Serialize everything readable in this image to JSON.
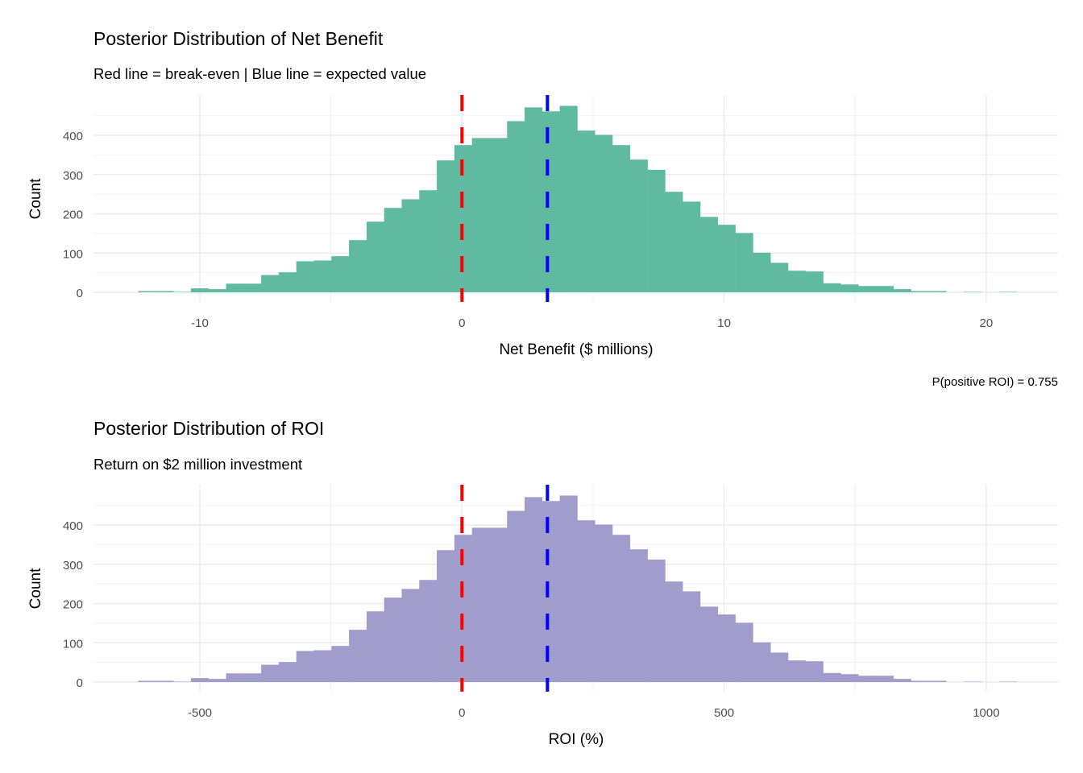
{
  "chart_data": [
    {
      "type": "bar",
      "subtype": "histogram",
      "title": "Posterior Distribution of Net Benefit",
      "subtitle": "Red line = break-even | Blue line = expected value",
      "xlabel": "Net Benefit ($ millions)",
      "ylabel": "Count",
      "caption": "P(positive ROI) = 0.755",
      "xlim": [
        -13.9,
        23.0
      ],
      "ylim": [
        0,
        500
      ],
      "xticks": [
        -10,
        0,
        10,
        20
      ],
      "xtick_labels": [
        "-10",
        "0",
        "10",
        "20"
      ],
      "yticks": [
        0,
        100,
        200,
        300,
        400
      ],
      "ytick_labels": [
        "0",
        "100",
        "200",
        "300",
        "400"
      ],
      "bin_start": -12.35,
      "bin_width": 0.67,
      "counts": [
        3,
        3,
        1,
        10,
        8,
        22,
        22,
        44,
        51,
        79,
        81,
        92,
        133,
        180,
        215,
        237,
        260,
        336,
        375,
        393,
        393,
        436,
        471,
        461,
        475,
        412,
        401,
        375,
        338,
        312,
        256,
        231,
        192,
        172,
        151,
        101,
        75,
        55,
        53,
        23,
        20,
        16,
        16,
        8,
        3,
        3,
        0,
        1,
        0,
        1
      ],
      "fill_color": "#5FBAA0",
      "vlines": [
        {
          "name": "break-even",
          "x": 0,
          "color": "#FF0000"
        },
        {
          "name": "expected value",
          "x": 3.26,
          "color": "#0000FF"
        }
      ],
      "grid": true
    },
    {
      "type": "bar",
      "subtype": "histogram",
      "title": "Posterior Distribution of ROI",
      "subtitle": "Return on $2 million investment",
      "xlabel": "ROI (%)",
      "ylabel": "Count",
      "xlim": [
        -695,
        1150
      ],
      "ylim": [
        0,
        500
      ],
      "xticks": [
        -500,
        0,
        500,
        1000
      ],
      "xtick_labels": [
        "-500",
        "0",
        "500",
        "1000"
      ],
      "yticks": [
        0,
        100,
        200,
        300,
        400
      ],
      "ytick_labels": [
        "0",
        "100",
        "200",
        "300",
        "400"
      ],
      "bin_start": -617.5,
      "bin_width": 33.5,
      "counts": [
        3,
        3,
        1,
        10,
        8,
        22,
        22,
        44,
        51,
        79,
        81,
        92,
        133,
        180,
        215,
        237,
        260,
        336,
        375,
        393,
        393,
        436,
        471,
        461,
        475,
        412,
        401,
        375,
        338,
        312,
        256,
        231,
        192,
        172,
        151,
        101,
        75,
        55,
        53,
        23,
        20,
        16,
        16,
        8,
        3,
        3,
        0,
        1,
        0,
        1
      ],
      "fill_color": "#A09CCB",
      "vlines": [
        {
          "name": "break-even",
          "x": 0,
          "color": "#FF0000"
        },
        {
          "name": "expected value",
          "x": 163,
          "color": "#0000FF"
        }
      ],
      "grid": true
    }
  ]
}
